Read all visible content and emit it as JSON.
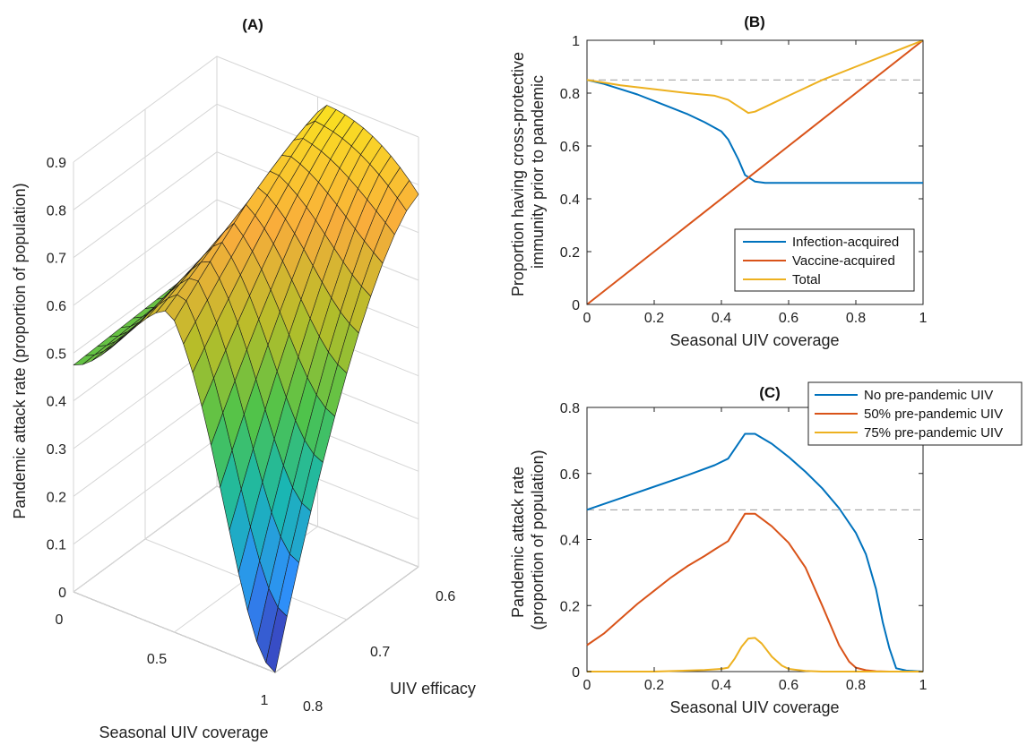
{
  "chart_data": [
    {
      "panel": "A",
      "type": "surface",
      "title": "(A)",
      "xlabel": "Seasonal UIV coverage",
      "ylabel": "UIV efficacy",
      "zlabel": "Pandemic attack rate (proportion of population)",
      "coverage_ticks": [
        "0",
        "0.5",
        "1"
      ],
      "efficacy_ticks": [
        "0.6",
        "0.7",
        "0.8"
      ],
      "z_ticks": [
        "0",
        "0.1",
        "0.2",
        "0.3",
        "0.4",
        "0.5",
        "0.6",
        "0.7",
        "0.8",
        "0.9"
      ],
      "coverage_range": [
        0,
        1
      ],
      "efficacy_range": [
        0.6,
        0.8
      ],
      "zlim": [
        0,
        0.9
      ],
      "grid": true,
      "colormap": [
        "#3e26a8",
        "#2e8ff9",
        "#19b7b0",
        "#4ec34b",
        "#b7bd29",
        "#f9ac3c",
        "#f9e51e"
      ]
    },
    {
      "panel": "B",
      "type": "line",
      "title": "(B)",
      "xlabel": "Seasonal UIV coverage",
      "ylabel": "Proportion having cross-protective immunity prior to pandemic",
      "ylabel_lines": [
        "Proportion having cross-protective",
        "immunity prior to pandemic"
      ],
      "xlim": [
        0,
        1
      ],
      "ylim": [
        0,
        1
      ],
      "x_ticks": [
        "0",
        "0.2",
        "0.4",
        "0.6",
        "0.8",
        "1"
      ],
      "y_ticks": [
        "0",
        "0.2",
        "0.4",
        "0.6",
        "0.8",
        "1"
      ],
      "reference_line_y": 0.85,
      "legend_position": "bottom-right",
      "series": [
        {
          "name": "Infection-acquired",
          "color": "#0072bd",
          "x": [
            0,
            0.05,
            0.1,
            0.15,
            0.2,
            0.25,
            0.3,
            0.35,
            0.4,
            0.42,
            0.45,
            0.47,
            0.5,
            0.53,
            0.6,
            0.7,
            0.8,
            0.9,
            1
          ],
          "y": [
            0.85,
            0.835,
            0.815,
            0.795,
            0.77,
            0.745,
            0.72,
            0.69,
            0.655,
            0.625,
            0.55,
            0.49,
            0.465,
            0.46,
            0.46,
            0.46,
            0.46,
            0.46,
            0.46
          ]
        },
        {
          "name": "Vaccine-acquired",
          "color": "#d95319",
          "x": [
            0,
            1
          ],
          "y": [
            0,
            1
          ]
        },
        {
          "name": "Total",
          "color": "#edb120",
          "x": [
            0,
            0.1,
            0.2,
            0.3,
            0.38,
            0.42,
            0.45,
            0.48,
            0.5,
            0.55,
            0.6,
            0.7,
            0.8,
            0.9,
            1
          ],
          "y": [
            0.85,
            0.83,
            0.815,
            0.8,
            0.79,
            0.775,
            0.75,
            0.725,
            0.73,
            0.76,
            0.79,
            0.85,
            0.9,
            0.95,
            1
          ]
        }
      ]
    },
    {
      "panel": "C",
      "type": "line",
      "title": "(C)",
      "xlabel": "Seasonal UIV coverage",
      "ylabel": "Pandemic attack rate (proportion of population)",
      "ylabel_lines": [
        "Pandemic attack rate",
        "(proportion of population)"
      ],
      "xlim": [
        0,
        1
      ],
      "ylim": [
        0,
        0.8
      ],
      "x_ticks": [
        "0",
        "0.2",
        "0.4",
        "0.6",
        "0.8",
        "1"
      ],
      "y_ticks": [
        "0",
        "0.2",
        "0.4",
        "0.6",
        "0.8"
      ],
      "reference_line_y": 0.49,
      "legend_position": "top-right",
      "series": [
        {
          "name": "No pre-pandemic UIV",
          "color": "#0072bd",
          "x": [
            0,
            0.1,
            0.2,
            0.3,
            0.38,
            0.42,
            0.45,
            0.47,
            0.5,
            0.55,
            0.6,
            0.65,
            0.7,
            0.75,
            0.8,
            0.83,
            0.86,
            0.88,
            0.9,
            0.92,
            0.95,
            1
          ],
          "y": [
            0.49,
            0.525,
            0.56,
            0.595,
            0.625,
            0.645,
            0.69,
            0.72,
            0.72,
            0.69,
            0.65,
            0.605,
            0.555,
            0.495,
            0.42,
            0.355,
            0.25,
            0.15,
            0.07,
            0.01,
            0.003,
            0
          ]
        },
        {
          "name": "50% pre-pandemic UIV",
          "color": "#d95319",
          "x": [
            0,
            0.05,
            0.1,
            0.15,
            0.2,
            0.25,
            0.3,
            0.35,
            0.38,
            0.42,
            0.45,
            0.47,
            0.5,
            0.55,
            0.6,
            0.65,
            0.7,
            0.75,
            0.78,
            0.8,
            0.83,
            0.86,
            0.9,
            1
          ],
          "y": [
            0.08,
            0.115,
            0.16,
            0.205,
            0.245,
            0.285,
            0.32,
            0.35,
            0.37,
            0.395,
            0.445,
            0.478,
            0.478,
            0.44,
            0.39,
            0.315,
            0.2,
            0.08,
            0.03,
            0.012,
            0.004,
            0.001,
            0,
            0
          ]
        },
        {
          "name": "75% pre-pandemic UIV",
          "color": "#edb120",
          "x": [
            0,
            0.2,
            0.35,
            0.4,
            0.42,
            0.44,
            0.46,
            0.48,
            0.5,
            0.52,
            0.55,
            0.58,
            0.6,
            0.65,
            0.7,
            1
          ],
          "y": [
            0,
            0,
            0.005,
            0.008,
            0.012,
            0.04,
            0.075,
            0.1,
            0.102,
            0.085,
            0.045,
            0.018,
            0.008,
            0.002,
            0,
            0
          ]
        }
      ]
    }
  ]
}
